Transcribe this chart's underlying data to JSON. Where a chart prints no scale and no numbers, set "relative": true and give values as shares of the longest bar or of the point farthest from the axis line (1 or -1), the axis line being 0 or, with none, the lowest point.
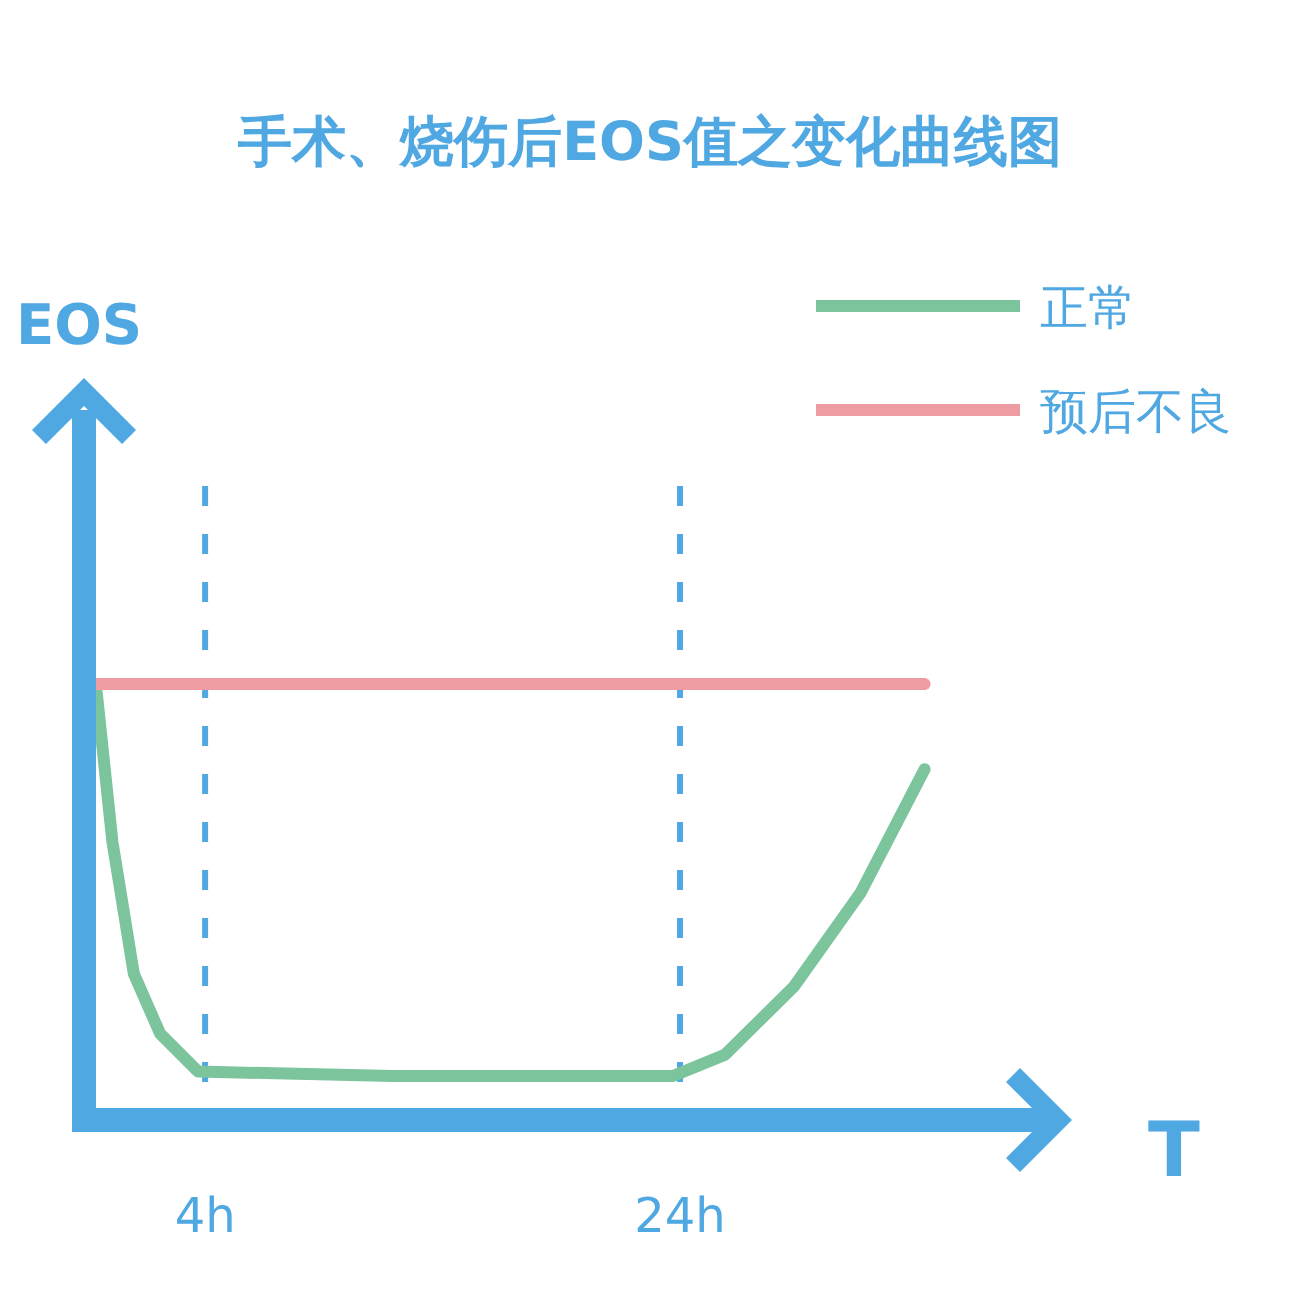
{
  "chart_data": {
    "type": "line",
    "relative": true,
    "title": "手术、烧伤后EOS值之变化曲线图",
    "xlabel": "T",
    "annotations": [
      "EOS"
    ],
    "xlim": [
      -1.1,
      40
    ],
    "xticks": [
      {
        "value": 4,
        "label": "4h"
      },
      {
        "value": 24,
        "label": "24h"
      }
    ],
    "series": [
      {
        "name": "正常",
        "color": "#7cc49c",
        "x": [
          -0.6,
          0.1,
          1.0,
          2.1,
          3.7,
          11.9,
          23.7,
          25.9,
          28.8,
          31.6,
          34.3
        ],
        "values": [
          1.0,
          0.63,
          0.32,
          0.18,
          0.09,
          0.08,
          0.08,
          0.13,
          0.29,
          0.51,
          0.8
        ]
      },
      {
        "name": "预后不良",
        "color": "#ee9ca2",
        "x": [
          -0.6,
          34.3
        ],
        "values": [
          1.0,
          1.0
        ]
      }
    ],
    "ref_lines": [
      {
        "axis": "x",
        "value": 4,
        "color": "#4fa8e2",
        "line_style": "dashed"
      },
      {
        "axis": "x",
        "value": 24,
        "color": "#4fa8e2",
        "line_style": "dashed"
      }
    ],
    "legend": "top right",
    "grid": false,
    "marker": "none",
    "line_style": "solid"
  }
}
